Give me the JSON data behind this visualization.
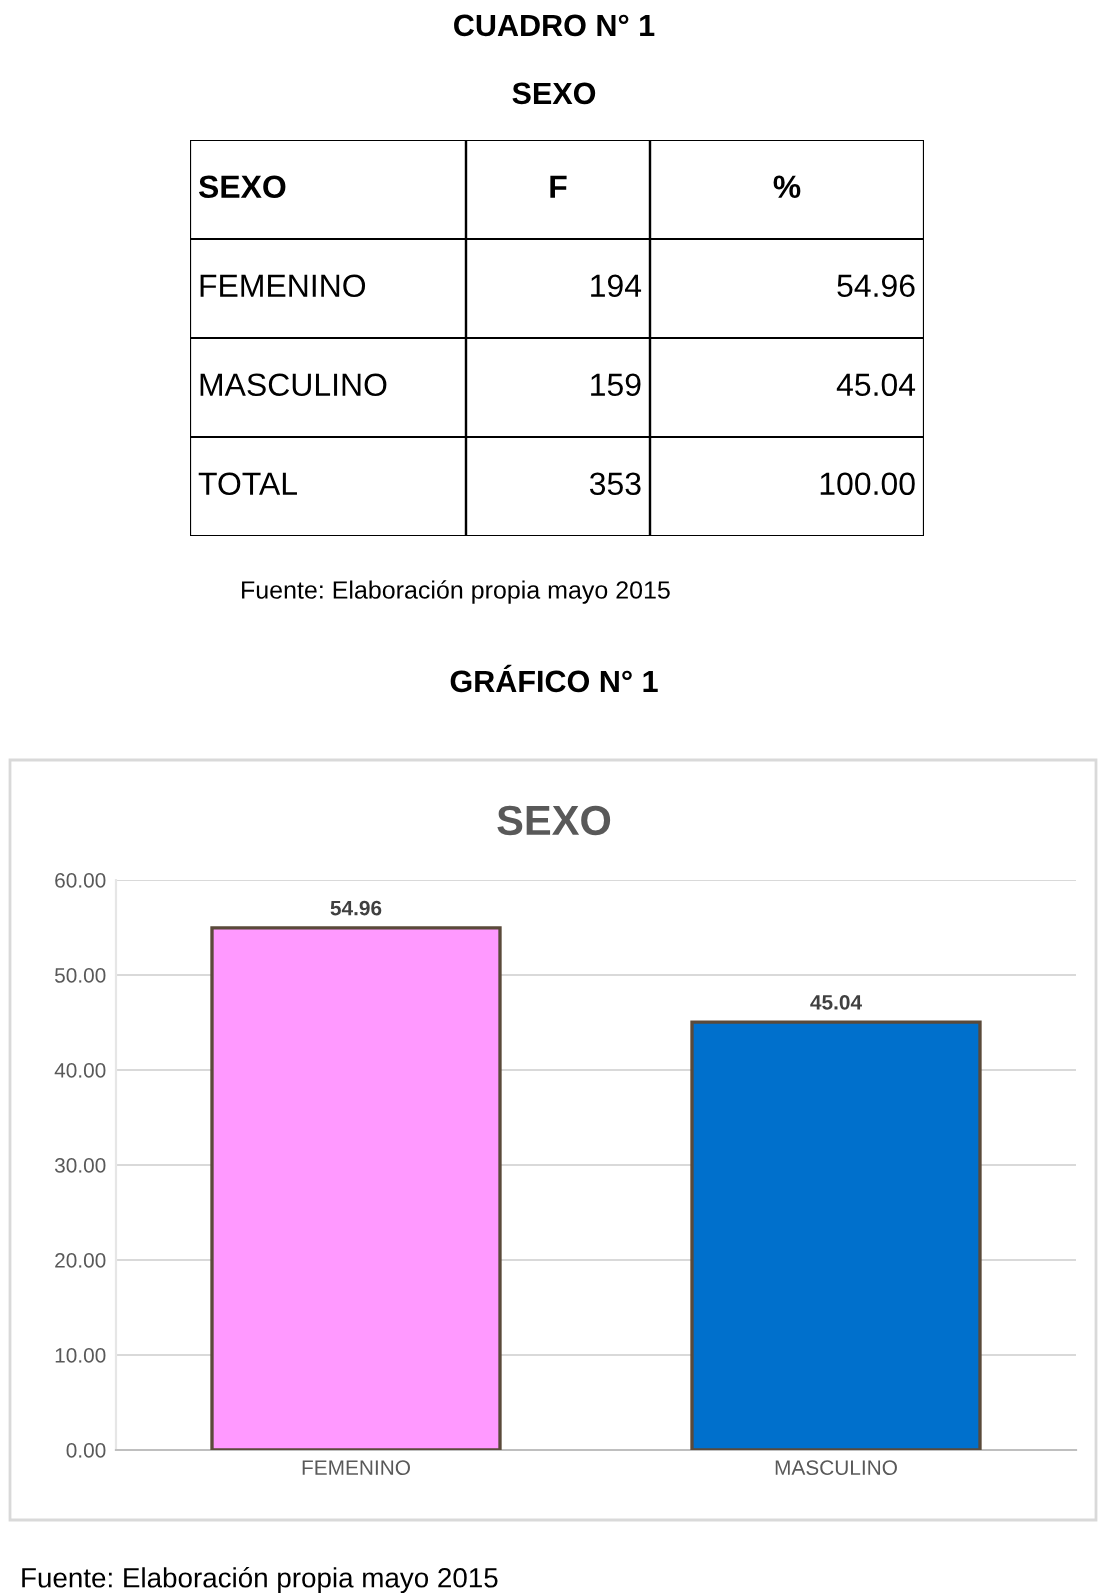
{
  "chart_data": [
    {
      "type": "other",
      "title": "CUADRO N° 1",
      "subtitle": "SEXO",
      "annotations": [
        "SEXO",
        "F",
        "%",
        "FEMENINO",
        "194",
        "54.96",
        "MASCULINO",
        "159",
        "45.04",
        "TOTAL",
        "353",
        "100.00",
        "Fuente: Elaboración propia mayo 2015"
      ]
    },
    {
      "type": "bar",
      "title": "SEXO",
      "categories": [
        "FEMENINO",
        "MASCULINO"
      ],
      "values": [
        54.96,
        45.04
      ],
      "colors": [
        "#ff99ff",
        "#0070cc"
      ],
      "ylim": [
        0,
        60
      ],
      "yticks": [
        {
          "value": 0,
          "label": "0.00"
        },
        {
          "value": 10,
          "label": "10.00"
        },
        {
          "value": 20,
          "label": "20.00"
        },
        {
          "value": 30,
          "label": "30.00"
        },
        {
          "value": 40,
          "label": "40.00"
        },
        {
          "value": 50,
          "label": "50.00"
        },
        {
          "value": 60,
          "label": "60.00"
        }
      ],
      "grid": "y",
      "data_labels": true,
      "annotations": [
        "GRÁFICO N° 1",
        "Fuente: Elaboración propia mayo 2015"
      ]
    }
  ]
}
